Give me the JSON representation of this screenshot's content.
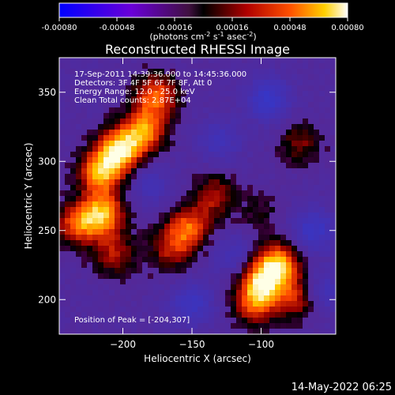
{
  "colorbar": {
    "ticks": [
      "-0.00080",
      "-0.00048",
      "-0.00016",
      "0.00016",
      "0.00048",
      "0.00080"
    ],
    "units_main": "(photons cm",
    "units_sup1": "-2",
    "units_mid": " s",
    "units_sup2": "-1",
    "units_end": " asec",
    "units_sup3": "-2",
    "units_close": ")"
  },
  "chart_data": {
    "type": "heatmap",
    "title": "Reconstructed RHESSI Image",
    "xlabel": "Heliocentric X (arcsec)",
    "ylabel": "Heliocentric Y (arcsec)",
    "xlim": [
      -246,
      -46
    ],
    "ylim": [
      175,
      375
    ],
    "x_ticks": [
      -200,
      -150,
      -100
    ],
    "y_ticks": [
      200,
      250,
      300,
      350
    ],
    "colorbar_range": [
      -0.0008,
      0.0008
    ],
    "peak": [
      -204,
      307
    ],
    "sources": [
      {
        "x": -216,
        "y": 292,
        "level": 0.85
      },
      {
        "x": -202,
        "y": 308,
        "level": 0.95
      },
      {
        "x": -185,
        "y": 322,
        "level": 0.75
      },
      {
        "x": -176,
        "y": 347,
        "level": 0.7
      },
      {
        "x": -232,
        "y": 255,
        "level": 0.65
      },
      {
        "x": -214,
        "y": 262,
        "level": 0.8
      },
      {
        "x": -206,
        "y": 233,
        "level": 0.45
      },
      {
        "x": -152,
        "y": 252,
        "level": 0.65
      },
      {
        "x": -165,
        "y": 237,
        "level": 0.45
      },
      {
        "x": -133,
        "y": 275,
        "level": 0.45
      },
      {
        "x": -100,
        "y": 212,
        "level": 0.8
      },
      {
        "x": -88,
        "y": 226,
        "level": 0.85
      },
      {
        "x": -104,
        "y": 196,
        "level": 0.55
      },
      {
        "x": -72,
        "y": 202,
        "level": 0.6
      },
      {
        "x": -72,
        "y": 313,
        "level": 0.35
      },
      {
        "x": -100,
        "y": 262,
        "level": 0.2
      }
    ],
    "sinks": [
      {
        "x": -95,
        "y": 345,
        "level": -0.55
      },
      {
        "x": -62,
        "y": 250,
        "level": -0.5
      },
      {
        "x": -58,
        "y": 205,
        "level": -0.45
      },
      {
        "x": -150,
        "y": 197,
        "level": -0.45
      },
      {
        "x": -130,
        "y": 315,
        "level": -0.35
      },
      {
        "x": -180,
        "y": 283,
        "level": -0.3
      },
      {
        "x": -120,
        "y": 232,
        "level": -0.3
      }
    ]
  },
  "annotations": {
    "time": "17-Sep-2011 14:39:36.000 to 14:45:36.000",
    "detectors": "Detectors: 3F 4F 5F 6F 7F 8F, Att 0",
    "energy": "Energy Range: 12.0 - 25.0 keV",
    "clean": "Clean     Total counts: 2.87E+04",
    "peak": "Position of Peak = [-204,307]"
  },
  "footer": {
    "date": "14-May-2022 06:25"
  }
}
